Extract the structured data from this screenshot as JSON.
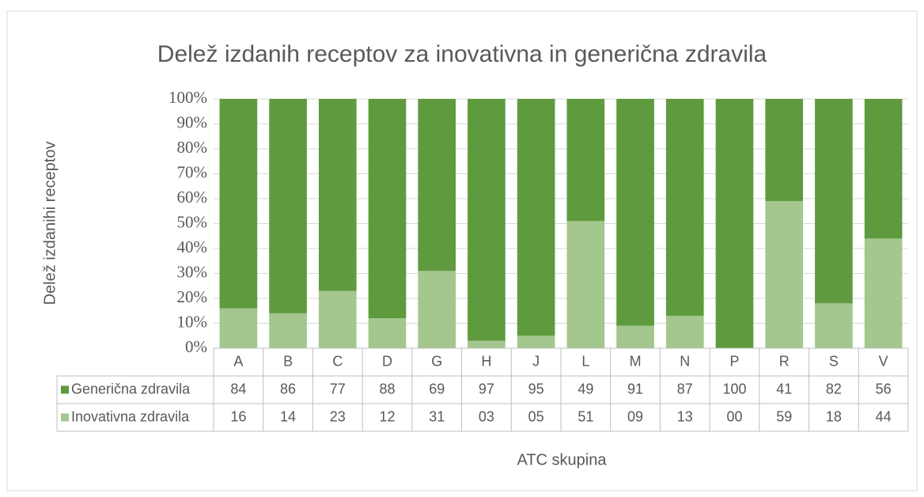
{
  "chart_data": {
    "type": "stacked_bar",
    "title": "Delež izdanih receptov za inovativna in generična zdravila",
    "y_label": "Delež izdanihi receptov",
    "x_label": "ATC skupina",
    "categories": [
      "A",
      "B",
      "C",
      "D",
      "G",
      "H",
      "J",
      "L",
      "M",
      "N",
      "P",
      "R",
      "S",
      "V"
    ],
    "series": [
      {
        "name": "Generična zdravila",
        "color": "#5f9b3e",
        "values": [
          84,
          86,
          77,
          88,
          69,
          97,
          95,
          49,
          91,
          87,
          100,
          41,
          82,
          56
        ],
        "value_labels": [
          "84",
          "86",
          "77",
          "88",
          "69",
          "97",
          "95",
          "49",
          "91",
          "87",
          "100",
          "41",
          "82",
          "56"
        ]
      },
      {
        "name": "Inovativna zdravila",
        "color": "#a3c78f",
        "values": [
          16,
          14,
          23,
          12,
          31,
          3,
          5,
          51,
          9,
          13,
          0,
          59,
          18,
          44
        ],
        "value_labels": [
          "16",
          "14",
          "23",
          "12",
          "31",
          "03",
          "05",
          "51",
          "09",
          "13",
          "00",
          "59",
          "18",
          "44"
        ]
      }
    ],
    "ylim": [
      0,
      100
    ],
    "yticks": [
      {
        "value": 0,
        "label": "0%"
      },
      {
        "value": 10,
        "label": "10%"
      },
      {
        "value": 20,
        "label": "20%"
      },
      {
        "value": 30,
        "label": "30%"
      },
      {
        "value": 40,
        "label": "40%"
      },
      {
        "value": 50,
        "label": "50%"
      },
      {
        "value": 60,
        "label": "60%"
      },
      {
        "value": 70,
        "label": "70%"
      },
      {
        "value": 80,
        "label": "80%"
      },
      {
        "value": 90,
        "label": "90%"
      },
      {
        "value": 100,
        "label": "100%"
      }
    ],
    "grid": true
  }
}
